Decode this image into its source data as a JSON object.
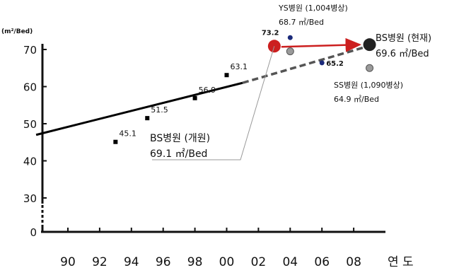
{
  "chart_data": {
    "type": "scatter",
    "y_unit_label": "(m²/Bed)",
    "x_axis_suffix": "연 도",
    "x_ticks": [
      "90",
      "92",
      "94",
      "96",
      "98",
      "00",
      "02",
      "04",
      "06",
      "08"
    ],
    "y_ticks": [
      "0",
      "30",
      "40",
      "50",
      "60",
      "70"
    ],
    "ylim": [
      0,
      72
    ],
    "xlim": [
      1988,
      2010
    ],
    "points": [
      {
        "x": 1993,
        "y": 45.1,
        "label": "45.1"
      },
      {
        "x": 1995,
        "y": 51.5,
        "label": "51.5"
      },
      {
        "x": 1998,
        "y": 56.9,
        "label": "56.9"
      },
      {
        "x": 2000,
        "y": 63.1,
        "label": "63.1"
      }
    ],
    "trend_line": {
      "solid": [
        [
          1988,
          47.0
        ],
        [
          2001,
          61.0
        ]
      ],
      "dashed": [
        [
          2001,
          61.0
        ],
        [
          2009,
          71.0
        ]
      ]
    },
    "hospitals": [
      {
        "id": "bs-open",
        "x": 2003,
        "y": 70.9,
        "value_label": "73.2",
        "name": "BS병원 (개원)",
        "value": "69.1 ㎡/Bed",
        "color": "#cc1f1f"
      },
      {
        "id": "bs-now",
        "x": 2009,
        "y": 71.3,
        "name": "BS병원 (현재)",
        "value": "69.6 ㎡/Bed",
        "color": "#222222"
      },
      {
        "id": "ys",
        "x": 2004,
        "y": 73.2,
        "name": "YS병원 (1,004병상)",
        "value": "68.7 ㎡/Bed",
        "color": "#1b2a7a"
      },
      {
        "id": "ys-ref",
        "x": 2004,
        "y": 69.5,
        "color": "#8a8a8a"
      },
      {
        "id": "ss",
        "x": 2006,
        "y": 66.4,
        "value_label": "65.2",
        "color": "#1b2a7a"
      },
      {
        "id": "ss-ref",
        "x": 2009,
        "y": 65.0,
        "name": "SS병원 (1,090병상)",
        "value": "64.9 ㎡/Bed",
        "color": "#8a8a8a"
      }
    ]
  }
}
